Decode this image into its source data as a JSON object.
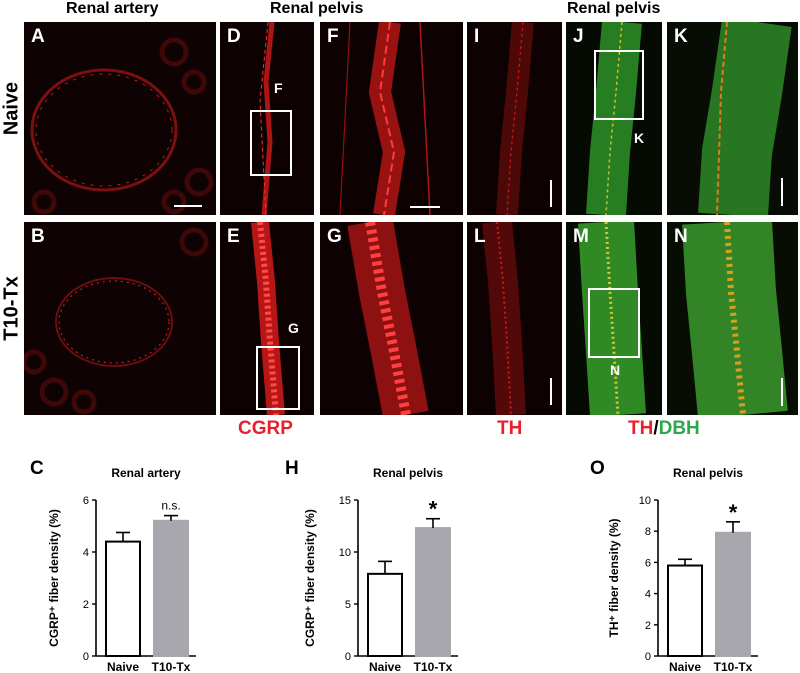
{
  "headers": {
    "renal_artery": "Renal artery",
    "renal_pelvis_1": "Renal pelvis",
    "renal_pelvis_2": "Renal pelvis"
  },
  "row_labels": {
    "naive": "Naive",
    "t10": "T10-Tx"
  },
  "panels": {
    "A": "A",
    "B": "B",
    "D": "D",
    "E": "E",
    "F": "F",
    "G": "G",
    "I": "I",
    "J": "J",
    "K": "K",
    "L": "L",
    "M": "M",
    "N": "N"
  },
  "insets": {
    "F": "F",
    "G": "G",
    "K": "K",
    "N": "N"
  },
  "stains": {
    "cgrp": "CGRP",
    "th": "TH",
    "th2": "TH",
    "slash": "/",
    "dbh": "DBH"
  },
  "colors": {
    "red_stain": "#e8202a",
    "green_stain": "#2aa84a",
    "bar_tx": "#a7a7ad",
    "bar_naive": "#ffffff"
  },
  "chart_labels": {
    "C": "C",
    "H": "H",
    "O": "O"
  },
  "chart_data": [
    {
      "type": "bar",
      "title": "Renal artery",
      "ylabel": "CGRP⁺ fiber density (%)",
      "categories": [
        "Naive",
        "T10-Tx"
      ],
      "values": [
        4.4,
        5.2
      ],
      "errors": [
        0.35,
        0.2
      ],
      "ylim": [
        0,
        6
      ],
      "yticks": [
        0,
        2,
        4,
        6
      ],
      "annotation": "n.s."
    },
    {
      "type": "bar",
      "title": "Renal pelvis",
      "ylabel": "CGRP⁺ fiber density (%)",
      "categories": [
        "Naive",
        "T10-Tx"
      ],
      "values": [
        7.9,
        12.3
      ],
      "errors": [
        1.2,
        0.9
      ],
      "ylim": [
        0,
        15
      ],
      "yticks": [
        0,
        5,
        10,
        15
      ],
      "annotation": "*"
    },
    {
      "type": "bar",
      "title": "Renal pelvis",
      "ylabel": "TH⁺ fiber density (%)",
      "categories": [
        "Naive",
        "T10-Tx"
      ],
      "values": [
        5.8,
        7.9
      ],
      "errors": [
        0.4,
        0.7
      ],
      "ylim": [
        0,
        10
      ],
      "yticks": [
        0,
        2,
        4,
        6,
        8,
        10
      ],
      "annotation": "*"
    }
  ]
}
